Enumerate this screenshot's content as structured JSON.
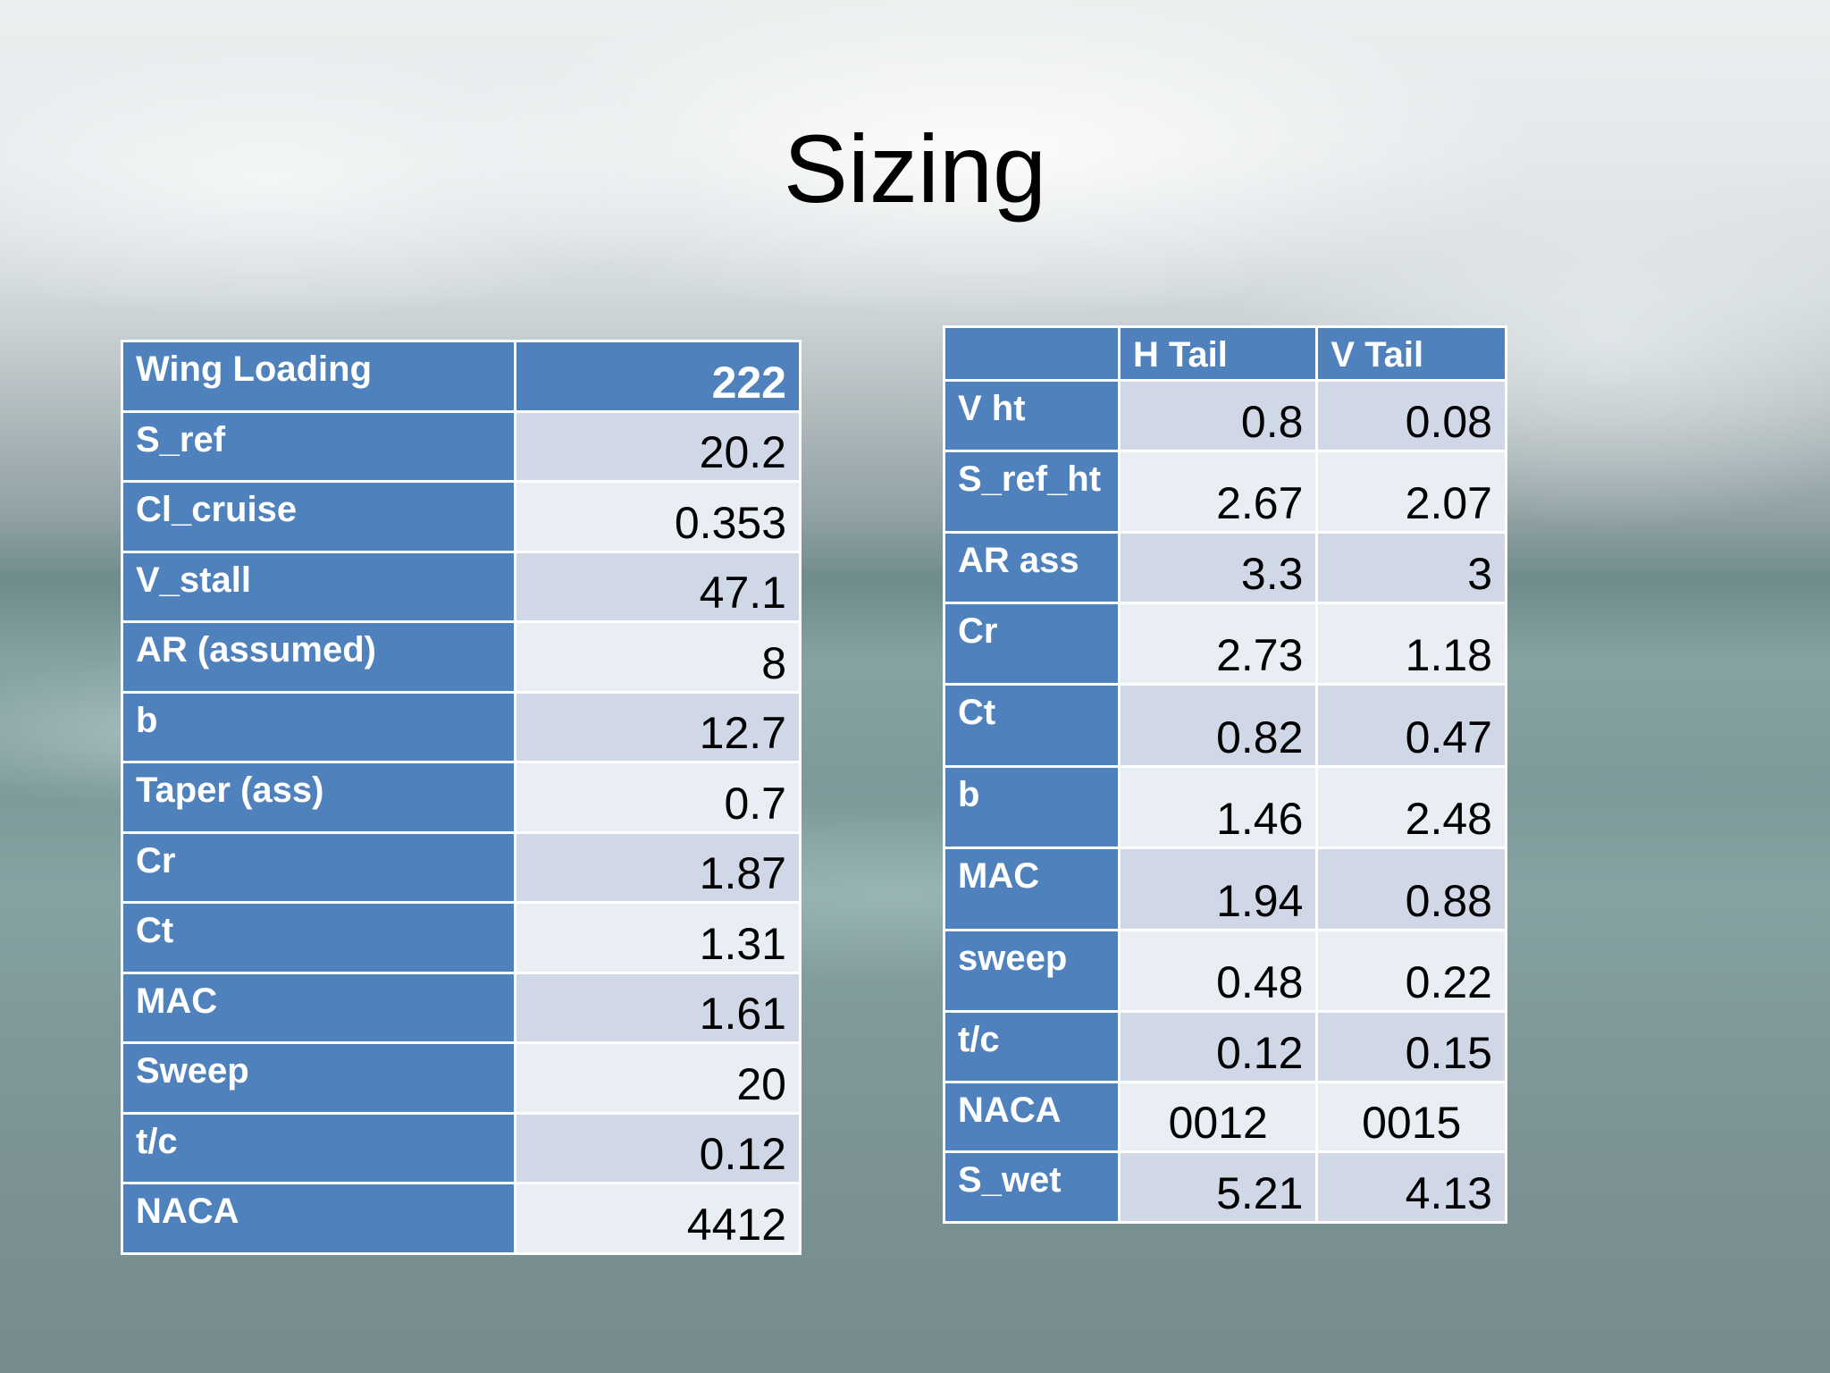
{
  "title": "Sizing",
  "wing_table": {
    "header": {
      "label": "Wing Loading",
      "value": "222"
    },
    "rows": [
      {
        "label": "S_ref",
        "value": "20.2"
      },
      {
        "label": "Cl_cruise",
        "value": "0.353"
      },
      {
        "label": "V_stall",
        "value": "47.1"
      },
      {
        "label": "AR (assumed)",
        "value": "8"
      },
      {
        "label": "b",
        "value": "12.7"
      },
      {
        "label": "Taper (ass)",
        "value": "0.7"
      },
      {
        "label": "Cr",
        "value": "1.87"
      },
      {
        "label": "Ct",
        "value": "1.31"
      },
      {
        "label": "MAC",
        "value": "1.61"
      },
      {
        "label": "Sweep",
        "value": "20"
      },
      {
        "label": "t/c",
        "value": "0.12"
      },
      {
        "label": "NACA",
        "value": "4412"
      }
    ]
  },
  "tail_table": {
    "columns": [
      "",
      "H Tail",
      "V Tail"
    ],
    "rows": [
      {
        "label": "V ht",
        "h": "0.8",
        "v": "0.08"
      },
      {
        "label": "S_ref_ht",
        "h": "2.67",
        "v": "2.07"
      },
      {
        "label": "AR ass",
        "h": "3.3",
        "v": "3"
      },
      {
        "label": "Cr",
        "h": "2.73",
        "v": "1.18"
      },
      {
        "label": "Ct",
        "h": "0.82",
        "v": "0.47"
      },
      {
        "label": "b",
        "h": "1.46",
        "v": "2.48"
      },
      {
        "label": "MAC",
        "h": "1.94",
        "v": "0.88"
      },
      {
        "label": "sweep",
        "h": "0.48",
        "v": "0.22"
      },
      {
        "label": "t/c",
        "h": "0.12",
        "v": "0.15"
      },
      {
        "label": "NACA",
        "h": "0012",
        "v": "0015"
      },
      {
        "label": "S_wet",
        "h": "5.21",
        "v": "4.13"
      }
    ]
  }
}
